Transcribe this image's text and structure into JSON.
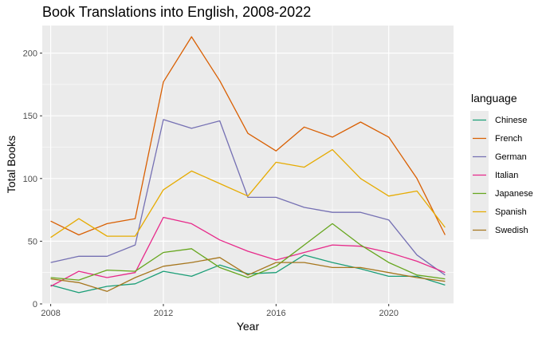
{
  "chart_data": {
    "type": "line",
    "title": "Book Translations into English, 2008-2022",
    "xlabel": "Year",
    "ylabel": "Total Books",
    "xlim": [
      2007.7,
      2022.3
    ],
    "ylim": [
      0,
      222
    ],
    "xticks": [
      2008,
      2012,
      2016,
      2020
    ],
    "yticks": [
      0,
      50,
      100,
      150,
      200
    ],
    "x": [
      2008,
      2009,
      2010,
      2011,
      2012,
      2013,
      2014,
      2015,
      2016,
      2017,
      2018,
      2019,
      2020,
      2021,
      2022
    ],
    "grid": true,
    "legend_title": "language",
    "legend_position": "right",
    "series": [
      {
        "name": "Chinese",
        "color": "#1b9e77",
        "values": [
          15,
          9,
          14,
          16,
          26,
          22,
          31,
          24,
          25,
          39,
          33,
          28,
          22,
          22,
          15
        ]
      },
      {
        "name": "French",
        "color": "#d95f02",
        "values": [
          66,
          55,
          64,
          68,
          177,
          213,
          178,
          136,
          122,
          141,
          133,
          145,
          133,
          100,
          55
        ]
      },
      {
        "name": "German",
        "color": "#7570b3",
        "values": [
          33,
          38,
          38,
          47,
          147,
          140,
          146,
          85,
          85,
          77,
          73,
          73,
          67,
          39,
          23
        ]
      },
      {
        "name": "Italian",
        "color": "#e7298a",
        "values": [
          14,
          26,
          21,
          25,
          69,
          64,
          51,
          42,
          35,
          41,
          47,
          46,
          41,
          34,
          25
        ]
      },
      {
        "name": "Japanese",
        "color": "#66a61e",
        "values": [
          21,
          19,
          27,
          26,
          41,
          44,
          29,
          21,
          30,
          47,
          64,
          47,
          33,
          23,
          20
        ]
      },
      {
        "name": "Spanish",
        "color": "#e6ab02",
        "values": [
          53,
          68,
          54,
          54,
          91,
          106,
          96,
          86,
          113,
          109,
          123,
          100,
          86,
          90,
          61
        ]
      },
      {
        "name": "Swedish",
        "color": "#a6761d",
        "values": [
          20,
          17,
          10,
          21,
          30,
          33,
          37,
          23,
          33,
          33,
          29,
          29,
          25,
          21,
          18
        ]
      }
    ]
  }
}
